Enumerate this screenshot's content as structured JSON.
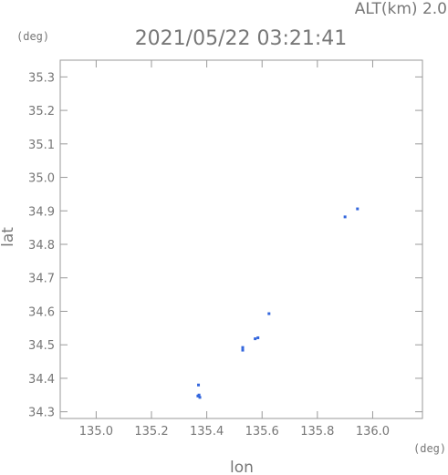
{
  "chart_data": {
    "type": "scatter",
    "title": "2021/05/22 03:21:41",
    "altitude_label": "ALT(km) 2.0",
    "xlabel": "lon",
    "ylabel": "lat",
    "x_unit": "(deg)",
    "y_unit": "(deg)",
    "xlim": [
      134.87,
      136.18
    ],
    "ylim": [
      34.28,
      35.35
    ],
    "x_ticks": [
      "135.0",
      "135.2",
      "135.4",
      "135.6",
      "135.8",
      "136.0"
    ],
    "y_ticks": [
      "34.3",
      "34.4",
      "34.5",
      "34.6",
      "34.7",
      "34.8",
      "34.9",
      "35.0",
      "35.1",
      "35.2",
      "35.3"
    ],
    "grid": false,
    "series": [
      {
        "color": "#3366dd",
        "points": [
          {
            "x": 135.37,
            "y": 34.38
          },
          {
            "x": 135.368,
            "y": 34.347
          },
          {
            "x": 135.375,
            "y": 34.343
          },
          {
            "x": 135.372,
            "y": 34.35
          },
          {
            "x": 135.53,
            "y": 34.492
          },
          {
            "x": 135.53,
            "y": 34.484
          },
          {
            "x": 135.575,
            "y": 34.518
          },
          {
            "x": 135.585,
            "y": 34.521
          },
          {
            "x": 135.625,
            "y": 34.593
          },
          {
            "x": 135.9,
            "y": 34.882
          },
          {
            "x": 135.945,
            "y": 34.906
          }
        ]
      }
    ]
  }
}
